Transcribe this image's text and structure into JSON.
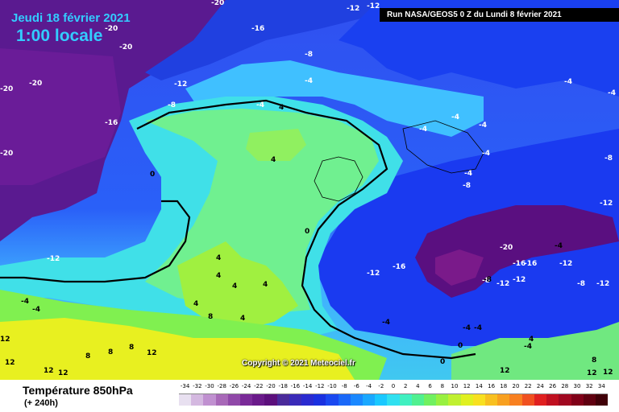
{
  "header": {
    "date": "Jeudi 18 février 2021",
    "time": "1:00 locale",
    "run": "Run NASA/GEOS5 0 Z du Lundi 8 février 2021"
  },
  "map": {
    "field": "Température 850hPa",
    "lead": "(+ 240h)",
    "copyright": "Copyright © 2021 Meteociel.fr",
    "contour_labels": [
      "-20",
      "-12",
      "-12",
      "-16",
      "-20",
      "-20",
      "-20",
      "-12",
      "-8",
      "-16",
      "-20",
      "-20",
      "-8",
      "-4",
      "-4",
      "4",
      "4",
      "4",
      "0",
      "0",
      "-4",
      "-4",
      "-4",
      "-4",
      "-4",
      "-4",
      "-8",
      "-4",
      "-8",
      "-8",
      "-20",
      "-16",
      "-16",
      "-12",
      "-12",
      "-12",
      "-8",
      "-12",
      "-12",
      "-12",
      "-16",
      "-12",
      "-4",
      "-4",
      "-4",
      "0",
      "0",
      "-4",
      "4",
      "4",
      "4",
      "4",
      "8",
      "4",
      "-4",
      "-4",
      "4",
      "8",
      "12",
      "8",
      "12",
      "12",
      "12",
      "8",
      "12",
      "8",
      "12",
      "12",
      "12",
      "-4",
      "-8"
    ]
  },
  "legend": {
    "scale_values": [
      "-34",
      "-32",
      "-30",
      "-28",
      "-26",
      "-24",
      "-22",
      "-20",
      "-18",
      "-16",
      "-14",
      "-12",
      "-10",
      "-8",
      "-6",
      "-4",
      "-2",
      "0",
      "2",
      "4",
      "6",
      "8",
      "10",
      "12",
      "14",
      "16",
      "18",
      "20",
      "22",
      "24",
      "26",
      "28",
      "30",
      "32",
      "34"
    ],
    "scale_colors": [
      "#e8e0f0",
      "#d4b8e0",
      "#c090d0",
      "#a868b8",
      "#9048a8",
      "#7a2a98",
      "#6a1a8a",
      "#5c0f7c",
      "#4a2a9a",
      "#3a2ab8",
      "#2a2ad0",
      "#1a30e0",
      "#1a48f0",
      "#1a68f8",
      "#1a88ff",
      "#1aa8ff",
      "#1ac8ff",
      "#30e0f0",
      "#40f0c0",
      "#50f090",
      "#70f060",
      "#98f040",
      "#c0f030",
      "#e0f020",
      "#f8e020",
      "#f8c020",
      "#f8a020",
      "#f88020",
      "#f05020",
      "#e02020",
      "#c01020",
      "#a00820",
      "#800018",
      "#600010",
      "#400008"
    ]
  }
}
